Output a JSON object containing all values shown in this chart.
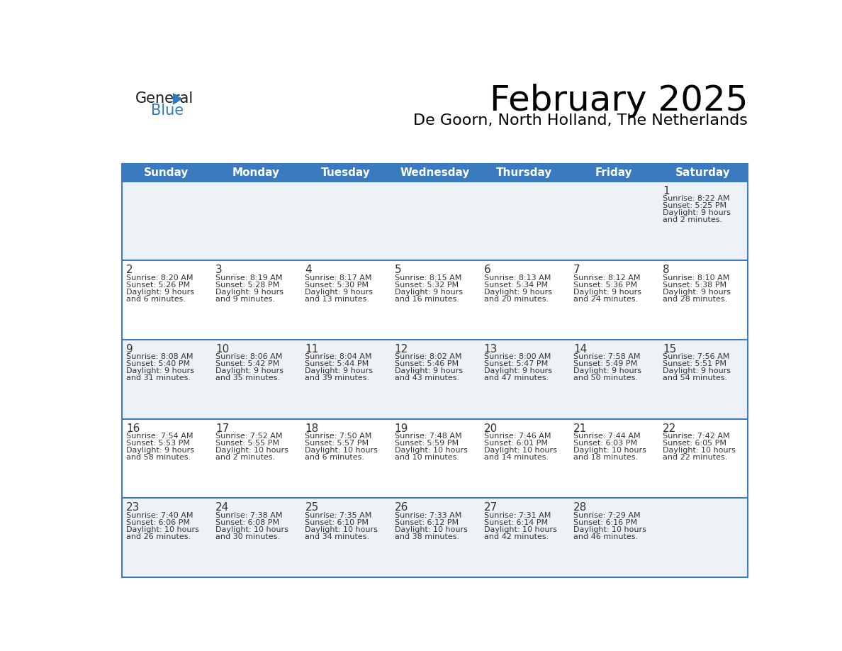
{
  "title": "February 2025",
  "subtitle": "De Goorn, North Holland, The Netherlands",
  "header_bg": "#3a7abf",
  "header_text_color": "#ffffff",
  "cell_bg_light": "#eef2f7",
  "cell_bg_white": "#ffffff",
  "day_headers": [
    "Sunday",
    "Monday",
    "Tuesday",
    "Wednesday",
    "Thursday",
    "Friday",
    "Saturday"
  ],
  "days": [
    {
      "day": 1,
      "col": 6,
      "row": 0,
      "sunrise": "8:22 AM",
      "sunset": "5:25 PM",
      "daylight_h": "9 hours",
      "daylight_m": "2 minutes"
    },
    {
      "day": 2,
      "col": 0,
      "row": 1,
      "sunrise": "8:20 AM",
      "sunset": "5:26 PM",
      "daylight_h": "9 hours",
      "daylight_m": "6 minutes"
    },
    {
      "day": 3,
      "col": 1,
      "row": 1,
      "sunrise": "8:19 AM",
      "sunset": "5:28 PM",
      "daylight_h": "9 hours",
      "daylight_m": "9 minutes"
    },
    {
      "day": 4,
      "col": 2,
      "row": 1,
      "sunrise": "8:17 AM",
      "sunset": "5:30 PM",
      "daylight_h": "9 hours",
      "daylight_m": "13 minutes"
    },
    {
      "day": 5,
      "col": 3,
      "row": 1,
      "sunrise": "8:15 AM",
      "sunset": "5:32 PM",
      "daylight_h": "9 hours",
      "daylight_m": "16 minutes"
    },
    {
      "day": 6,
      "col": 4,
      "row": 1,
      "sunrise": "8:13 AM",
      "sunset": "5:34 PM",
      "daylight_h": "9 hours",
      "daylight_m": "20 minutes"
    },
    {
      "day": 7,
      "col": 5,
      "row": 1,
      "sunrise": "8:12 AM",
      "sunset": "5:36 PM",
      "daylight_h": "9 hours",
      "daylight_m": "24 minutes"
    },
    {
      "day": 8,
      "col": 6,
      "row": 1,
      "sunrise": "8:10 AM",
      "sunset": "5:38 PM",
      "daylight_h": "9 hours",
      "daylight_m": "28 minutes"
    },
    {
      "day": 9,
      "col": 0,
      "row": 2,
      "sunrise": "8:08 AM",
      "sunset": "5:40 PM",
      "daylight_h": "9 hours",
      "daylight_m": "31 minutes"
    },
    {
      "day": 10,
      "col": 1,
      "row": 2,
      "sunrise": "8:06 AM",
      "sunset": "5:42 PM",
      "daylight_h": "9 hours",
      "daylight_m": "35 minutes"
    },
    {
      "day": 11,
      "col": 2,
      "row": 2,
      "sunrise": "8:04 AM",
      "sunset": "5:44 PM",
      "daylight_h": "9 hours",
      "daylight_m": "39 minutes"
    },
    {
      "day": 12,
      "col": 3,
      "row": 2,
      "sunrise": "8:02 AM",
      "sunset": "5:46 PM",
      "daylight_h": "9 hours",
      "daylight_m": "43 minutes"
    },
    {
      "day": 13,
      "col": 4,
      "row": 2,
      "sunrise": "8:00 AM",
      "sunset": "5:47 PM",
      "daylight_h": "9 hours",
      "daylight_m": "47 minutes"
    },
    {
      "day": 14,
      "col": 5,
      "row": 2,
      "sunrise": "7:58 AM",
      "sunset": "5:49 PM",
      "daylight_h": "9 hours",
      "daylight_m": "50 minutes"
    },
    {
      "day": 15,
      "col": 6,
      "row": 2,
      "sunrise": "7:56 AM",
      "sunset": "5:51 PM",
      "daylight_h": "9 hours",
      "daylight_m": "54 minutes"
    },
    {
      "day": 16,
      "col": 0,
      "row": 3,
      "sunrise": "7:54 AM",
      "sunset": "5:53 PM",
      "daylight_h": "9 hours",
      "daylight_m": "58 minutes"
    },
    {
      "day": 17,
      "col": 1,
      "row": 3,
      "sunrise": "7:52 AM",
      "sunset": "5:55 PM",
      "daylight_h": "10 hours",
      "daylight_m": "2 minutes"
    },
    {
      "day": 18,
      "col": 2,
      "row": 3,
      "sunrise": "7:50 AM",
      "sunset": "5:57 PM",
      "daylight_h": "10 hours",
      "daylight_m": "6 minutes"
    },
    {
      "day": 19,
      "col": 3,
      "row": 3,
      "sunrise": "7:48 AM",
      "sunset": "5:59 PM",
      "daylight_h": "10 hours",
      "daylight_m": "10 minutes"
    },
    {
      "day": 20,
      "col": 4,
      "row": 3,
      "sunrise": "7:46 AM",
      "sunset": "6:01 PM",
      "daylight_h": "10 hours",
      "daylight_m": "14 minutes"
    },
    {
      "day": 21,
      "col": 5,
      "row": 3,
      "sunrise": "7:44 AM",
      "sunset": "6:03 PM",
      "daylight_h": "10 hours",
      "daylight_m": "18 minutes"
    },
    {
      "day": 22,
      "col": 6,
      "row": 3,
      "sunrise": "7:42 AM",
      "sunset": "6:05 PM",
      "daylight_h": "10 hours",
      "daylight_m": "22 minutes"
    },
    {
      "day": 23,
      "col": 0,
      "row": 4,
      "sunrise": "7:40 AM",
      "sunset": "6:06 PM",
      "daylight_h": "10 hours",
      "daylight_m": "26 minutes"
    },
    {
      "day": 24,
      "col": 1,
      "row": 4,
      "sunrise": "7:38 AM",
      "sunset": "6:08 PM",
      "daylight_h": "10 hours",
      "daylight_m": "30 minutes"
    },
    {
      "day": 25,
      "col": 2,
      "row": 4,
      "sunrise": "7:35 AM",
      "sunset": "6:10 PM",
      "daylight_h": "10 hours",
      "daylight_m": "34 minutes"
    },
    {
      "day": 26,
      "col": 3,
      "row": 4,
      "sunrise": "7:33 AM",
      "sunset": "6:12 PM",
      "daylight_h": "10 hours",
      "daylight_m": "38 minutes"
    },
    {
      "day": 27,
      "col": 4,
      "row": 4,
      "sunrise": "7:31 AM",
      "sunset": "6:14 PM",
      "daylight_h": "10 hours",
      "daylight_m": "42 minutes"
    },
    {
      "day": 28,
      "col": 5,
      "row": 4,
      "sunrise": "7:29 AM",
      "sunset": "6:16 PM",
      "daylight_h": "10 hours",
      "daylight_m": "46 minutes"
    }
  ],
  "n_rows": 5,
  "n_cols": 7,
  "line_color": "#3a7abf",
  "text_color": "#333333",
  "title_fontsize": 36,
  "subtitle_fontsize": 16,
  "header_fontsize": 11,
  "day_num_fontsize": 11,
  "cell_text_fontsize": 8,
  "logo_general_color": "#1a1a1a",
  "logo_blue_color": "#2e7abf",
  "logo_triangle_color": "#2e7abf"
}
